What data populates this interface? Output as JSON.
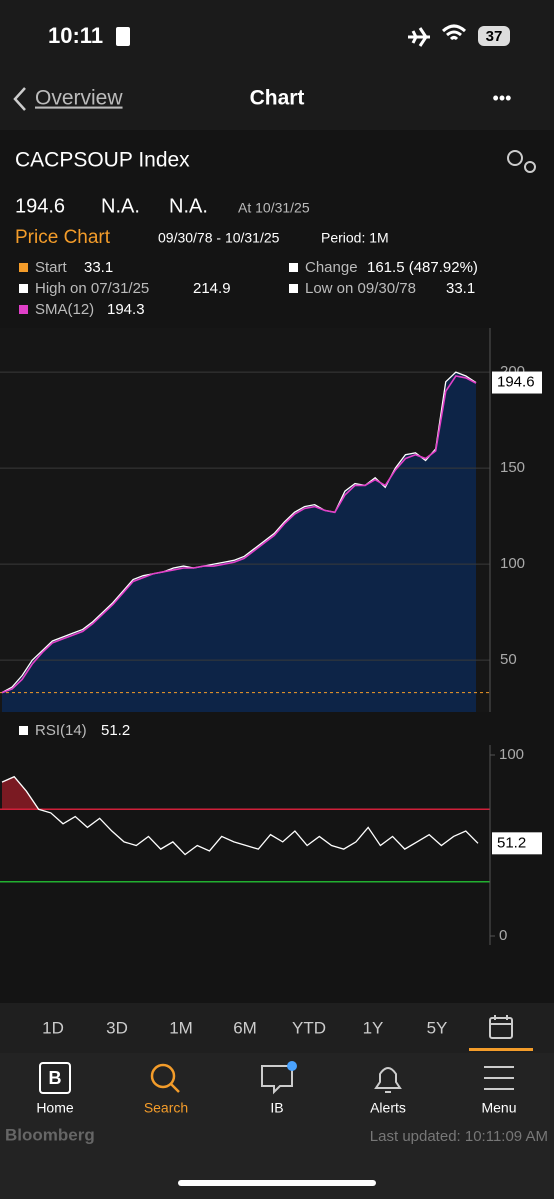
{
  "status_bar": {
    "time": "10:11",
    "battery": "37"
  },
  "nav": {
    "back": "Overview",
    "title": "Chart",
    "more": "•••"
  },
  "header": {
    "security": "CACPSOUP Index",
    "field_1": "N.A.",
    "field_2": "N.A.",
    "as_of": "At 10/31/25",
    "chart_label": "Price Chart",
    "range": "09/30/78 - 10/31/25",
    "period": "Period: 1M"
  },
  "chart_data": [
    {
      "type": "line",
      "start_label": "Start",
      "start": 33.1,
      "start_color": "#f39c2a",
      "change_label": "Change",
      "change": "161.5 (487.92%)",
      "high_label": "High on 07/31/25",
      "high": 214.9,
      "low_label": "Low on 09/30/78",
      "low": 33.1,
      "series": [
        {
          "color": "#ffffff",
          "fill": "#0d2447",
          "values": [
            33.1,
            36,
            42,
            50,
            55,
            60,
            62,
            64,
            66,
            70,
            75,
            80,
            86,
            92,
            94,
            95,
            96,
            98,
            99,
            98,
            99,
            100,
            101,
            102,
            104,
            108,
            112,
            116,
            122,
            127,
            130,
            131,
            128,
            127,
            138,
            142,
            141,
            145,
            140,
            150,
            157,
            158,
            154,
            160,
            195,
            200,
            198,
            194.6
          ]
        },
        {
          "name": "SMA(12)",
          "color": "#e040c8",
          "values": [
            33.1,
            35,
            40,
            48,
            54,
            59,
            61,
            63,
            65,
            69,
            74,
            79,
            85,
            91,
            93,
            95,
            96,
            97,
            98,
            98,
            99,
            99,
            100,
            101,
            103,
            107,
            111,
            115,
            121,
            126,
            129,
            130,
            128,
            127,
            136,
            141,
            141,
            144,
            141,
            149,
            155,
            157,
            155,
            159,
            190,
            198,
            197,
            194.3
          ]
        }
      ],
      "ylim": [
        23,
        223
      ],
      "yticks": [
        50,
        100,
        150,
        200
      ],
      "grid": true
    },
    {
      "type": "line",
      "series": [
        {
          "name": "RSI(14)",
          "color": "#ffffff",
          "values": [
            85,
            88,
            80,
            70,
            68,
            62,
            66,
            60,
            65,
            58,
            52,
            50,
            55,
            48,
            52,
            45,
            50,
            47,
            55,
            52,
            50,
            48,
            56,
            52,
            58,
            50,
            55,
            50,
            48,
            52,
            60,
            50,
            55,
            48,
            52,
            56,
            50,
            55,
            58,
            51.2
          ]
        }
      ],
      "levels": [
        {
          "value": 70,
          "color": "#d0203a"
        },
        {
          "value": 30,
          "color": "#22b030"
        }
      ],
      "overbought_fill": "#7a1a22",
      "ylim": [
        0,
        100
      ],
      "yticks": [
        0,
        100
      ]
    }
  ],
  "periods": [
    "1D",
    "3D",
    "1M",
    "6M",
    "YTD",
    "1Y",
    "5Y"
  ],
  "tab_bar": [
    "Home",
    "Search",
    "IB",
    "Alerts",
    "Menu"
  ],
  "footer": {
    "brand": "Bloomberg",
    "updated": "Last updated: 10:11:09 AM"
  }
}
